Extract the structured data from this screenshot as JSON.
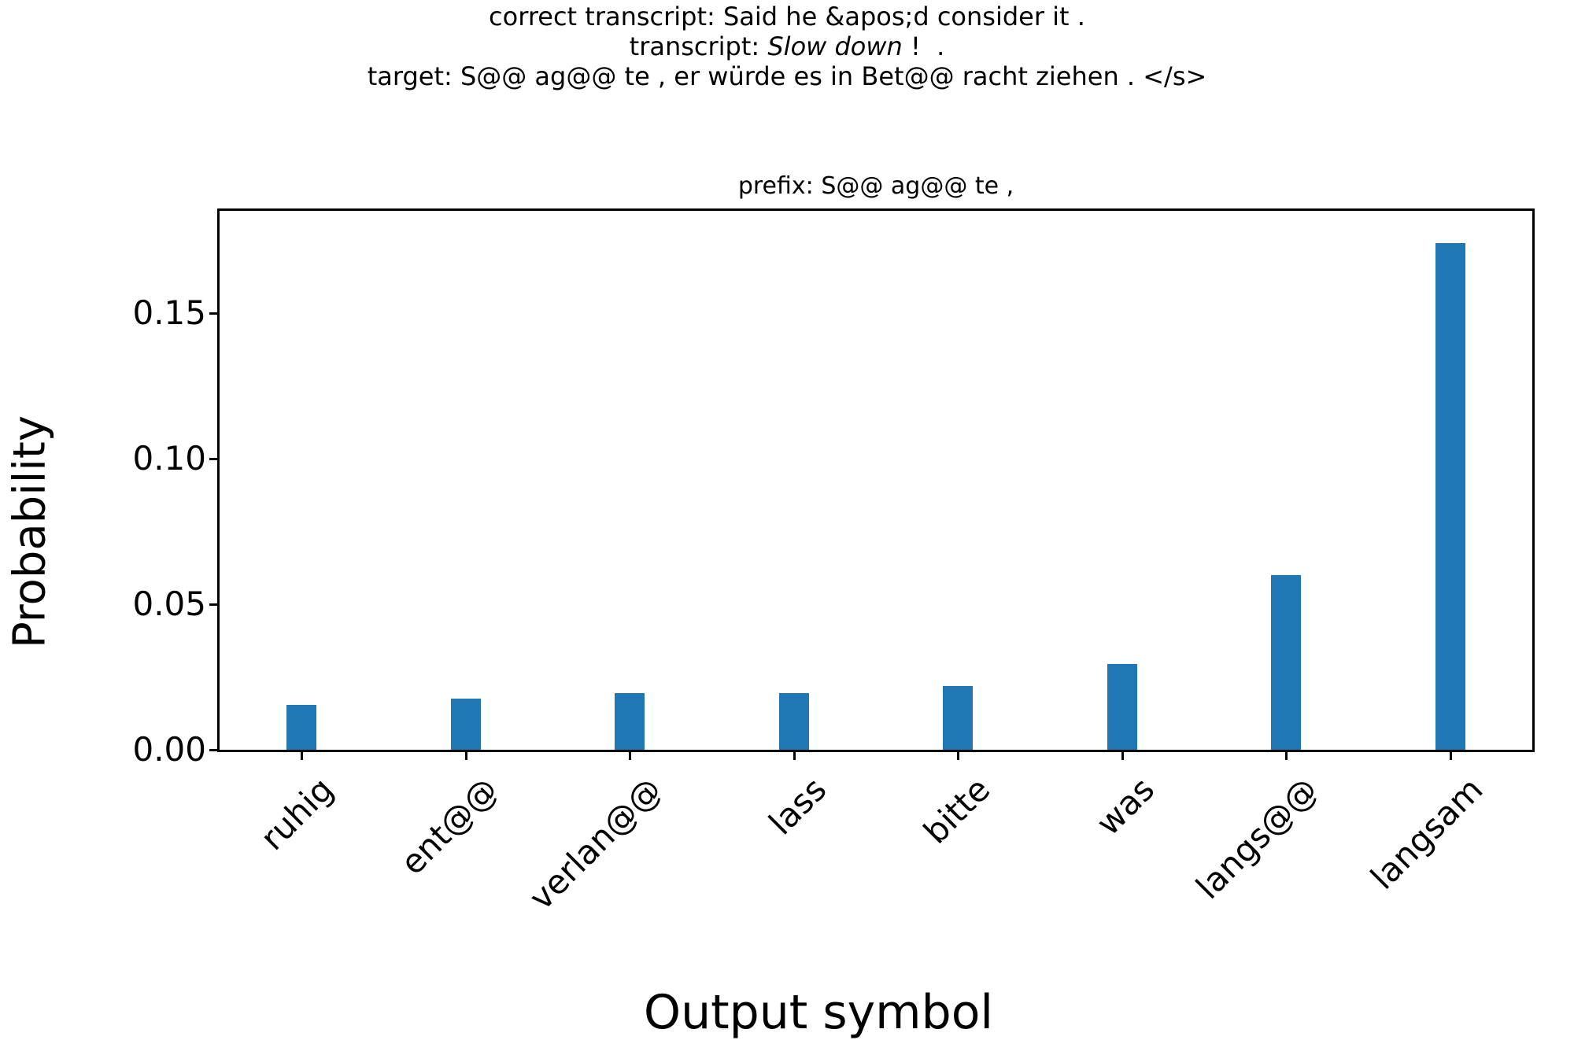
{
  "header": {
    "line1": "correct transcript: Said he &apos;d consider it .",
    "line2_prefix": "transcript: ",
    "line2_italic": "Slow down",
    "line2_suffix": " !  .",
    "line3": "target: S@@ ag@@ te , er würde es in Bet@@ racht ziehen . </s>"
  },
  "chart_data": {
    "type": "bar",
    "title": "prefix: S@@ ag@@ te ,",
    "xlabel": "Output symbol",
    "ylabel": "Probability",
    "categories": [
      "ruhig",
      "ent@@",
      "verlan@@",
      "lass",
      "bitte",
      "was",
      "langs@@",
      "langsam"
    ],
    "values": [
      0.0155,
      0.0175,
      0.0195,
      0.0195,
      0.022,
      0.0295,
      0.06,
      0.174
    ],
    "ylim": [
      0,
      0.185
    ],
    "yticks": [
      0,
      0.05,
      0.1,
      0.15
    ],
    "ytick_labels": [
      "0.00",
      "0.05",
      "0.10",
      "0.15"
    ],
    "bar_color": "#1f77b4",
    "grid": false,
    "legend_position": "none"
  }
}
